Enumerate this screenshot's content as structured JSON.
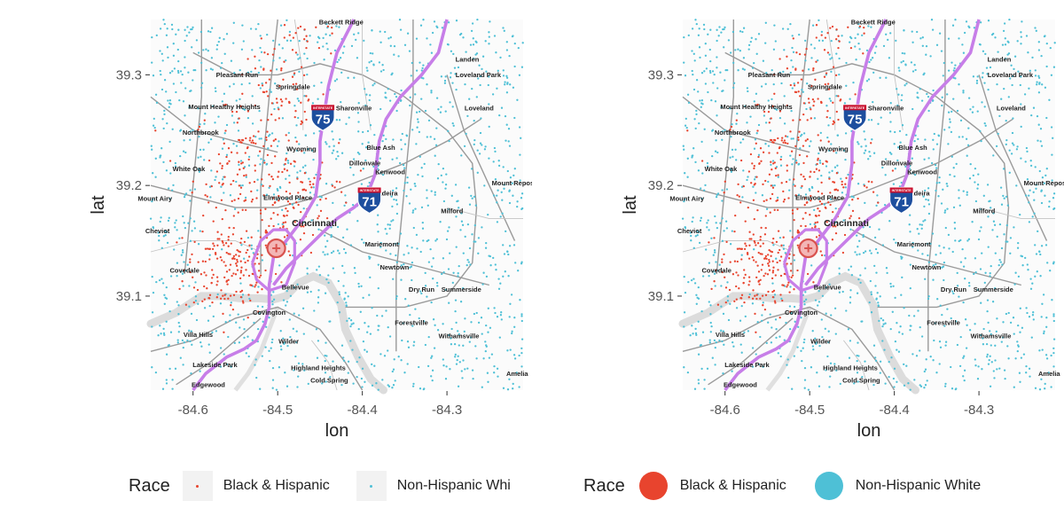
{
  "map": {
    "axes": {
      "xlabel": "lon",
      "ylabel": "lat",
      "xlim": [
        -84.65,
        -84.21
      ],
      "ylim": [
        39.015,
        39.35
      ],
      "xticks": [
        {
          "v": -84.6,
          "label": "-84.6"
        },
        {
          "v": -84.5,
          "label": "-84.5"
        },
        {
          "v": -84.4,
          "label": "-84.4"
        },
        {
          "v": -84.3,
          "label": "-84.3"
        }
      ],
      "yticks": [
        {
          "v": 39.1,
          "label": "39.1"
        },
        {
          "v": 39.2,
          "label": "39.2"
        },
        {
          "v": 39.3,
          "label": "39.3"
        }
      ]
    },
    "places": [
      {
        "name": "Beckett Ridge",
        "lon": -84.425,
        "lat": 39.3455
      },
      {
        "name": "Landen",
        "lon": -84.276,
        "lat": 39.312
      },
      {
        "name": "Loveland Park",
        "lon": -84.263,
        "lat": 39.298
      },
      {
        "name": "Pleasant Run",
        "lon": -84.548,
        "lat": 39.298
      },
      {
        "name": "Springdale",
        "lon": -84.482,
        "lat": 39.287
      },
      {
        "name": "Mount Healthy Heights",
        "lon": -84.563,
        "lat": 39.269
      },
      {
        "name": "Sharonville",
        "lon": -84.41,
        "lat": 39.268
      },
      {
        "name": "Loveland",
        "lon": -84.262,
        "lat": 39.268
      },
      {
        "name": "Northbrook",
        "lon": -84.591,
        "lat": 39.246
      },
      {
        "name": "Blue Ash",
        "lon": -84.378,
        "lat": 39.232
      },
      {
        "name": "Wyoming",
        "lon": -84.472,
        "lat": 39.231
      },
      {
        "name": "Dillonvale",
        "lon": -84.397,
        "lat": 39.218
      },
      {
        "name": "White Oak",
        "lon": -84.605,
        "lat": 39.213
      },
      {
        "name": "Kenwood",
        "lon": -84.367,
        "lat": 39.21
      },
      {
        "name": "Mount Repose",
        "lon": -84.22,
        "lat": 39.2
      },
      {
        "name": "Madeira",
        "lon": -84.373,
        "lat": 39.191
      },
      {
        "name": "Elmwood Place",
        "lon": -84.488,
        "lat": 39.187
      },
      {
        "name": "Mount Airy",
        "lon": -84.645,
        "lat": 39.186
      },
      {
        "name": "Milford",
        "lon": -84.294,
        "lat": 39.175
      },
      {
        "name": "Cincinnati",
        "lon": -84.4567,
        "lat": 39.1632
      },
      {
        "name": "Mariemont",
        "lon": -84.377,
        "lat": 39.145
      },
      {
        "name": "Cheviot",
        "lon": -84.642,
        "lat": 39.157
      },
      {
        "name": "Covedale",
        "lon": -84.61,
        "lat": 39.121
      },
      {
        "name": "Newtown",
        "lon": -84.362,
        "lat": 39.124
      },
      {
        "name": "Bellevue",
        "lon": -84.479,
        "lat": 39.106
      },
      {
        "name": "Dry Run",
        "lon": -84.33,
        "lat": 39.104
      },
      {
        "name": "Summerside",
        "lon": -84.283,
        "lat": 39.104
      },
      {
        "name": "Covington",
        "lon": -84.51,
        "lat": 39.083
      },
      {
        "name": "Forestville",
        "lon": -84.342,
        "lat": 39.074
      },
      {
        "name": "Villa Hills",
        "lon": -84.594,
        "lat": 39.063
      },
      {
        "name": "Withamsville",
        "lon": -84.286,
        "lat": 39.062
      },
      {
        "name": "Wilder",
        "lon": -84.487,
        "lat": 39.057
      },
      {
        "name": "Lakeside Park",
        "lon": -84.574,
        "lat": 39.036
      },
      {
        "name": "Highland Heights",
        "lon": -84.452,
        "lat": 39.033
      },
      {
        "name": "Amelia",
        "lon": -84.217,
        "lat": 39.028
      },
      {
        "name": "Cold Spring",
        "lon": -84.439,
        "lat": 39.022
      },
      {
        "name": "Edgewood",
        "lon": -84.582,
        "lat": 39.018
      }
    ],
    "shields": [
      {
        "number": "75",
        "top": "INTERSTATE",
        "lon": -84.4467,
        "lat": 39.2632
      },
      {
        "number": "71",
        "top": "INTERSTATE",
        "lon": -84.3917,
        "lat": 39.1885
      }
    ],
    "center_marker": {
      "lon": -84.5017,
      "lat": 39.1432,
      "symbol": "+"
    },
    "route_color": "#c77ee8"
  },
  "chart_data": [
    {
      "type": "scatter",
      "title": "",
      "xlabel": "lon",
      "ylabel": "lat",
      "xlim": [
        -84.65,
        -84.21
      ],
      "ylim": [
        39.015,
        39.35
      ],
      "grid": false,
      "legend_position": "bottom",
      "legend_title": "Race",
      "legend_truncated": true,
      "series": [
        {
          "name": "Black & Hispanic",
          "color": "#e8442e",
          "approx_points": 500
        },
        {
          "name": "Non-Hispanic White",
          "color": "#4ec0d6",
          "approx_points": 1300
        }
      ]
    },
    {
      "type": "scatter",
      "title": "",
      "xlabel": "lon",
      "ylabel": "lat",
      "xlim": [
        -84.65,
        -84.21
      ],
      "ylim": [
        39.015,
        39.35
      ],
      "grid": false,
      "legend_position": "bottom",
      "legend_title": "Race",
      "legend_truncated": false,
      "series": [
        {
          "name": "Black & Hispanic",
          "color": "#e8442e",
          "approx_points": 500
        },
        {
          "name": "Non-Hispanic White",
          "color": "#4ec0d6",
          "approx_points": 1300
        }
      ]
    }
  ],
  "legends": [
    {
      "title": "Race",
      "items": [
        {
          "label": "Black & Hispanic",
          "color": "#e8442e"
        },
        {
          "label": "Non-Hispanic Whi",
          "color": "#4ec0d6"
        }
      ]
    },
    {
      "title": "Race",
      "items": [
        {
          "label": "Black & Hispanic",
          "color": "#e8442e"
        },
        {
          "label": "Non-Hispanic White",
          "color": "#4ec0d6"
        }
      ]
    }
  ]
}
